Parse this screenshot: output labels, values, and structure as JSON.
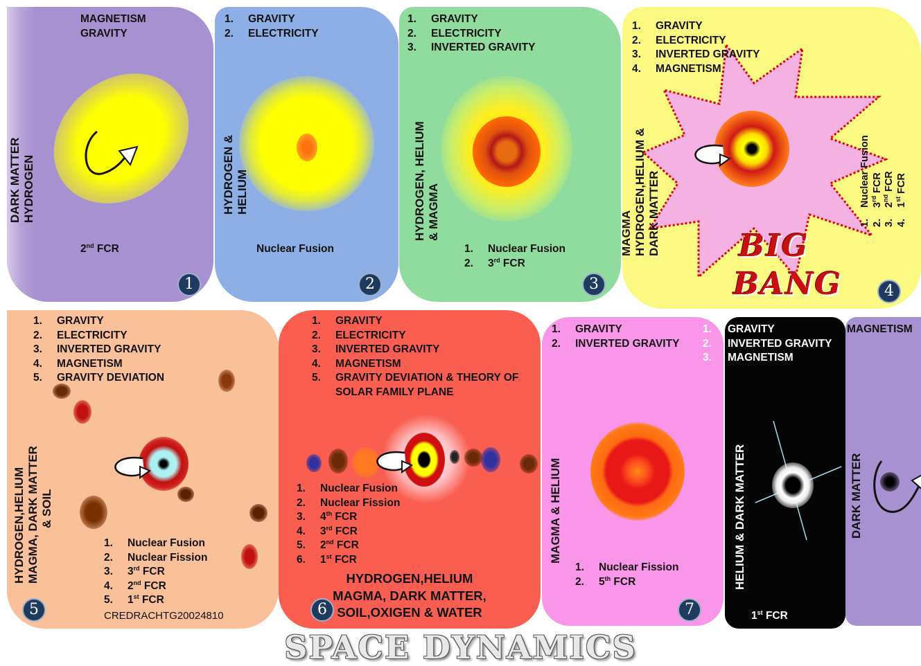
{
  "title": "SPACE DYNAMICS",
  "credit": "CREDRACHTG20024810",
  "p1": {
    "forces": [
      "MAGNETISM",
      "GRAVITY"
    ],
    "side": [
      "DARK MATTER",
      "HYDROGEN"
    ],
    "fcr": "2nd FCR",
    "badge": "1"
  },
  "p2": {
    "forces": [
      "GRAVITY",
      "ELECTRICITY"
    ],
    "side": [
      "HYDROGEN &",
      "HELIUM"
    ],
    "process": "Nuclear Fusion",
    "badge": "2"
  },
  "p3": {
    "forces": [
      "GRAVITY",
      "ELECTRICITY",
      "INVERTED GRAVITY"
    ],
    "side": [
      "HYDROGEN, HELIUM",
      "& MAGMA"
    ],
    "processes": [
      "Nuclear Fusion",
      "3rd FCR"
    ],
    "badge": "3"
  },
  "p4": {
    "forces": [
      "GRAVITY",
      "ELECTRICITY",
      "INVERTED GRAVITY",
      "MAGNETISM"
    ],
    "side": [
      "MAGMA",
      "HYDROGEN,HELIUM &",
      "DARK MATTER"
    ],
    "processes": [
      "Nuclear Fusion",
      "3rd FCR",
      "2nd FCR",
      "1st FCR"
    ],
    "bigbang": [
      "BIG",
      "BANG"
    ],
    "badge": "4"
  },
  "p5": {
    "forces": [
      "GRAVITY",
      "ELECTRICITY",
      "INVERTED GRAVITY",
      "MAGNETISM",
      "GRAVITY DEVIATION"
    ],
    "side": [
      "HYDROGEN,HELIUM",
      "MAGMA, DARK MATTER",
      "& SOIL"
    ],
    "processes": [
      "Nuclear Fusion",
      "Nuclear Fission",
      "3rd FCR",
      "2nd FCR",
      "1st FCR"
    ],
    "badge": "5"
  },
  "p6": {
    "forces": [
      "GRAVITY",
      "ELECTRICITY",
      "INVERTED GRAVITY",
      "MAGNETISM",
      "GRAVITY DEVIATION & THEORY OF SOLAR FAMILY PLANE"
    ],
    "processes": [
      "Nuclear Fusion",
      "Nuclear Fission",
      "4th FCR",
      "3rd FCR",
      "2nd FCR",
      "1st FCR"
    ],
    "bottom": [
      "HYDROGEN,HELIUM",
      "MAGMA, DARK MATTER,",
      "SOIL,OXIGEN & WATER"
    ],
    "badge": "6"
  },
  "p7": {
    "forces": [
      "GRAVITY",
      "INVERTED GRAVITY"
    ],
    "side": [
      "MAGMA & HELIUM"
    ],
    "processes": [
      "Nuclear Fission",
      "5th FCR"
    ],
    "badge": "7"
  },
  "p8": {
    "forces": [
      "GRAVITY",
      "INVERTED GRAVITY",
      "MAGNETISM"
    ],
    "side": [
      "HELIUM & DARK MATTER"
    ],
    "fcr": "1st FCR"
  },
  "p9": {
    "forces": [
      "MAGNETISM"
    ],
    "side": [
      "DARK MATTER"
    ]
  }
}
